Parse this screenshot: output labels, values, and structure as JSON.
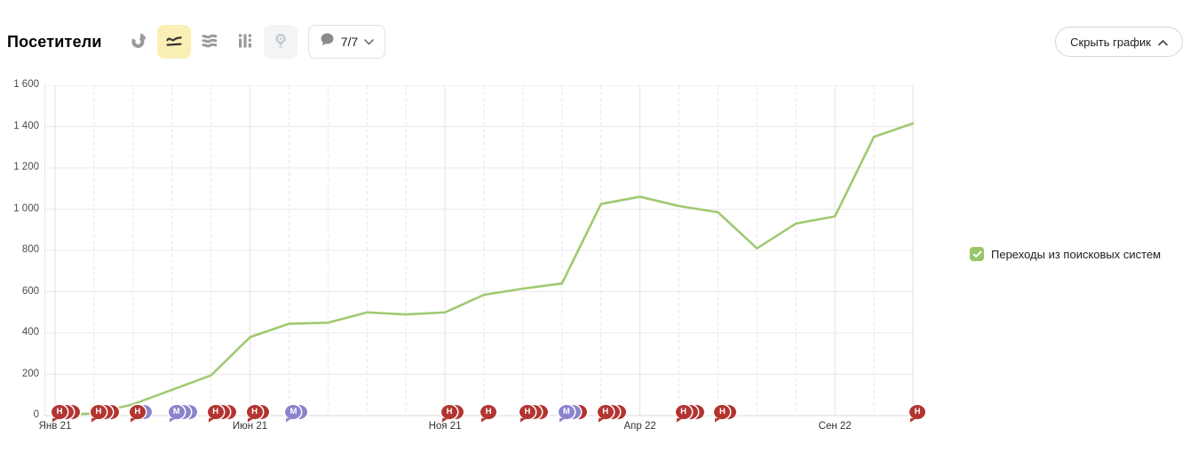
{
  "header": {
    "title": "Посетители",
    "toolbar": {
      "chart_type_buttons": [
        {
          "name": "pie-chart",
          "selected": false
        },
        {
          "name": "line-chart",
          "selected": true
        },
        {
          "name": "stacked-area-chart",
          "selected": false
        },
        {
          "name": "bar-chart",
          "selected": false
        },
        {
          "name": "map",
          "selected": false,
          "disabled": true
        }
      ],
      "notes_selector": {
        "count_label": "7/7"
      }
    },
    "hide_button": {
      "label": "Скрыть график"
    }
  },
  "legend": {
    "items": [
      {
        "label": "Переходы из поисковых систем",
        "checked": true,
        "color": "#97c766"
      }
    ]
  },
  "colors": {
    "line": "#a0c972",
    "marker_red": "#b23531",
    "marker_purple": "#8a84cd",
    "grid": "#e9e9e9",
    "grid_dashed": "#e7e7e7",
    "axis": "#cfcfcf",
    "selected_bg": "#faf0b5",
    "legend_check": "#97c766"
  },
  "chart_data": {
    "type": "line",
    "title": "Посетители",
    "ylabel": "",
    "xlabel": "",
    "ylim": [
      0,
      1600
    ],
    "months_count": 23,
    "grid": true,
    "legend_position": "right",
    "yticks": [
      {
        "v": 0,
        "label": "0"
      },
      {
        "v": 200,
        "label": "200"
      },
      {
        "v": 400,
        "label": "400"
      },
      {
        "v": 600,
        "label": "600"
      },
      {
        "v": 800,
        "label": "800"
      },
      {
        "v": 1000,
        "label": "1 000"
      },
      {
        "v": 1200,
        "label": "1 200"
      },
      {
        "v": 1400,
        "label": "1 400"
      },
      {
        "v": 1600,
        "label": "1 600"
      }
    ],
    "x_labels": [
      {
        "index": 0,
        "label": "Янв 21"
      },
      {
        "index": 5,
        "label": "Июн 21"
      },
      {
        "index": 10,
        "label": "Ноя 21"
      },
      {
        "index": 15,
        "label": "Апр 22"
      },
      {
        "index": 20,
        "label": "Сен 22"
      }
    ],
    "series": [
      {
        "name": "Переходы из поисковых систем",
        "color": "#a0c972",
        "values": [
          5,
          10,
          55,
          125,
          195,
          380,
          445,
          450,
          500,
          490,
          500,
          585,
          615,
          640,
          1025,
          1060,
          1015,
          985,
          810,
          930,
          965,
          1350,
          1415
        ]
      }
    ],
    "annotations": [
      {
        "month": 0,
        "letter": "Н",
        "color": "red",
        "crescents": [
          "red",
          "red"
        ]
      },
      {
        "month": 1,
        "letter": "Н",
        "color": "red",
        "crescents": [
          "red",
          "red"
        ]
      },
      {
        "month": 2,
        "letter": "Н",
        "color": "red",
        "crescents": [
          "purple"
        ]
      },
      {
        "month": 3,
        "letter": "М",
        "color": "purple",
        "crescents": [
          "purple",
          "purple"
        ]
      },
      {
        "month": 4,
        "letter": "Н",
        "color": "red",
        "crescents": [
          "red",
          "red"
        ]
      },
      {
        "month": 5,
        "letter": "Н",
        "color": "red",
        "crescents": [
          "red"
        ]
      },
      {
        "month": 6,
        "letter": "М",
        "color": "purple",
        "crescents": [
          "purple"
        ]
      },
      {
        "month": 10,
        "letter": "Н",
        "color": "red",
        "crescents": [
          "red"
        ]
      },
      {
        "month": 11,
        "letter": "Н",
        "color": "red",
        "crescents": []
      },
      {
        "month": 12,
        "letter": "Н",
        "color": "red",
        "crescents": [
          "red",
          "red"
        ]
      },
      {
        "month": 13,
        "letter": "М",
        "color": "purple",
        "crescents": [
          "purple",
          "red"
        ]
      },
      {
        "month": 14,
        "letter": "Н",
        "color": "red",
        "crescents": [
          "red",
          "red"
        ]
      },
      {
        "month": 16,
        "letter": "Н",
        "color": "red",
        "crescents": [
          "red",
          "red"
        ]
      },
      {
        "month": 17,
        "letter": "Н",
        "color": "red",
        "crescents": [
          "red"
        ]
      },
      {
        "month": 22,
        "letter": "Н",
        "color": "red",
        "crescents": []
      }
    ]
  }
}
